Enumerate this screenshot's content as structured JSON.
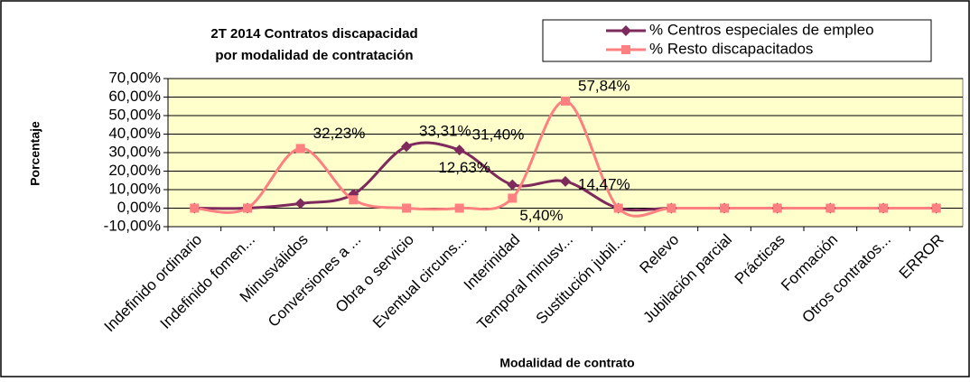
{
  "chart_data": {
    "type": "line",
    "title": [
      "2T 2014 Contratos discapacidad",
      "por modalidad de contratación"
    ],
    "x_label": "Modalidad de contrato",
    "y_label": "Porcentaje",
    "categories": [
      "Indefinido ordinario",
      "Indefinido fomen...",
      "Minusválidos",
      "Conversiones a ...",
      "Obra o servicio",
      "Eventual circuns...",
      "Interinidad",
      "Temporal minusv...",
      "Sustitución jubil...",
      "Relevo",
      "Jubilación parcial",
      "Prácticas",
      "Formación",
      "Otros contratos...",
      "ERROR"
    ],
    "series": [
      {
        "name": "% Centros especiales de empleo",
        "color": "#7f2a5c",
        "marker": "diamond",
        "values": [
          0,
          0,
          2.5,
          7.5,
          33.31,
          31.4,
          12.63,
          14.47,
          0,
          0,
          0,
          0,
          0,
          0,
          0
        ],
        "value_labels": [
          null,
          null,
          null,
          null,
          "33,31%",
          "31,40%",
          "12,63%",
          "14,47%",
          null,
          null,
          null,
          null,
          null,
          null,
          null
        ]
      },
      {
        "name": "% Resto discapacitados",
        "color": "#ff8080",
        "marker": "square",
        "values": [
          0,
          0,
          32.23,
          4.5,
          0,
          0,
          5.4,
          57.84,
          0,
          0,
          0,
          0,
          0,
          0,
          0
        ],
        "value_labels": [
          null,
          null,
          "32,23%",
          null,
          null,
          null,
          "5,40%",
          "57,84%",
          null,
          null,
          null,
          null,
          null,
          null,
          null
        ]
      }
    ],
    "ylim": [
      -10,
      70
    ],
    "yticks": [
      {
        "value": -10,
        "label": "-10,00%"
      },
      {
        "value": 0,
        "label": "0,00%"
      },
      {
        "value": 10,
        "label": "10,00%"
      },
      {
        "value": 20,
        "label": "20,00%"
      },
      {
        "value": 30,
        "label": "30,00%"
      },
      {
        "value": 40,
        "label": "40,00%"
      },
      {
        "value": 50,
        "label": "50,00%"
      },
      {
        "value": 60,
        "label": "60,00%"
      },
      {
        "value": 70,
        "label": "70,00%"
      }
    ],
    "grid": true,
    "smooth": true,
    "legend": "top-right",
    "plot_background": "#ffffcc"
  }
}
